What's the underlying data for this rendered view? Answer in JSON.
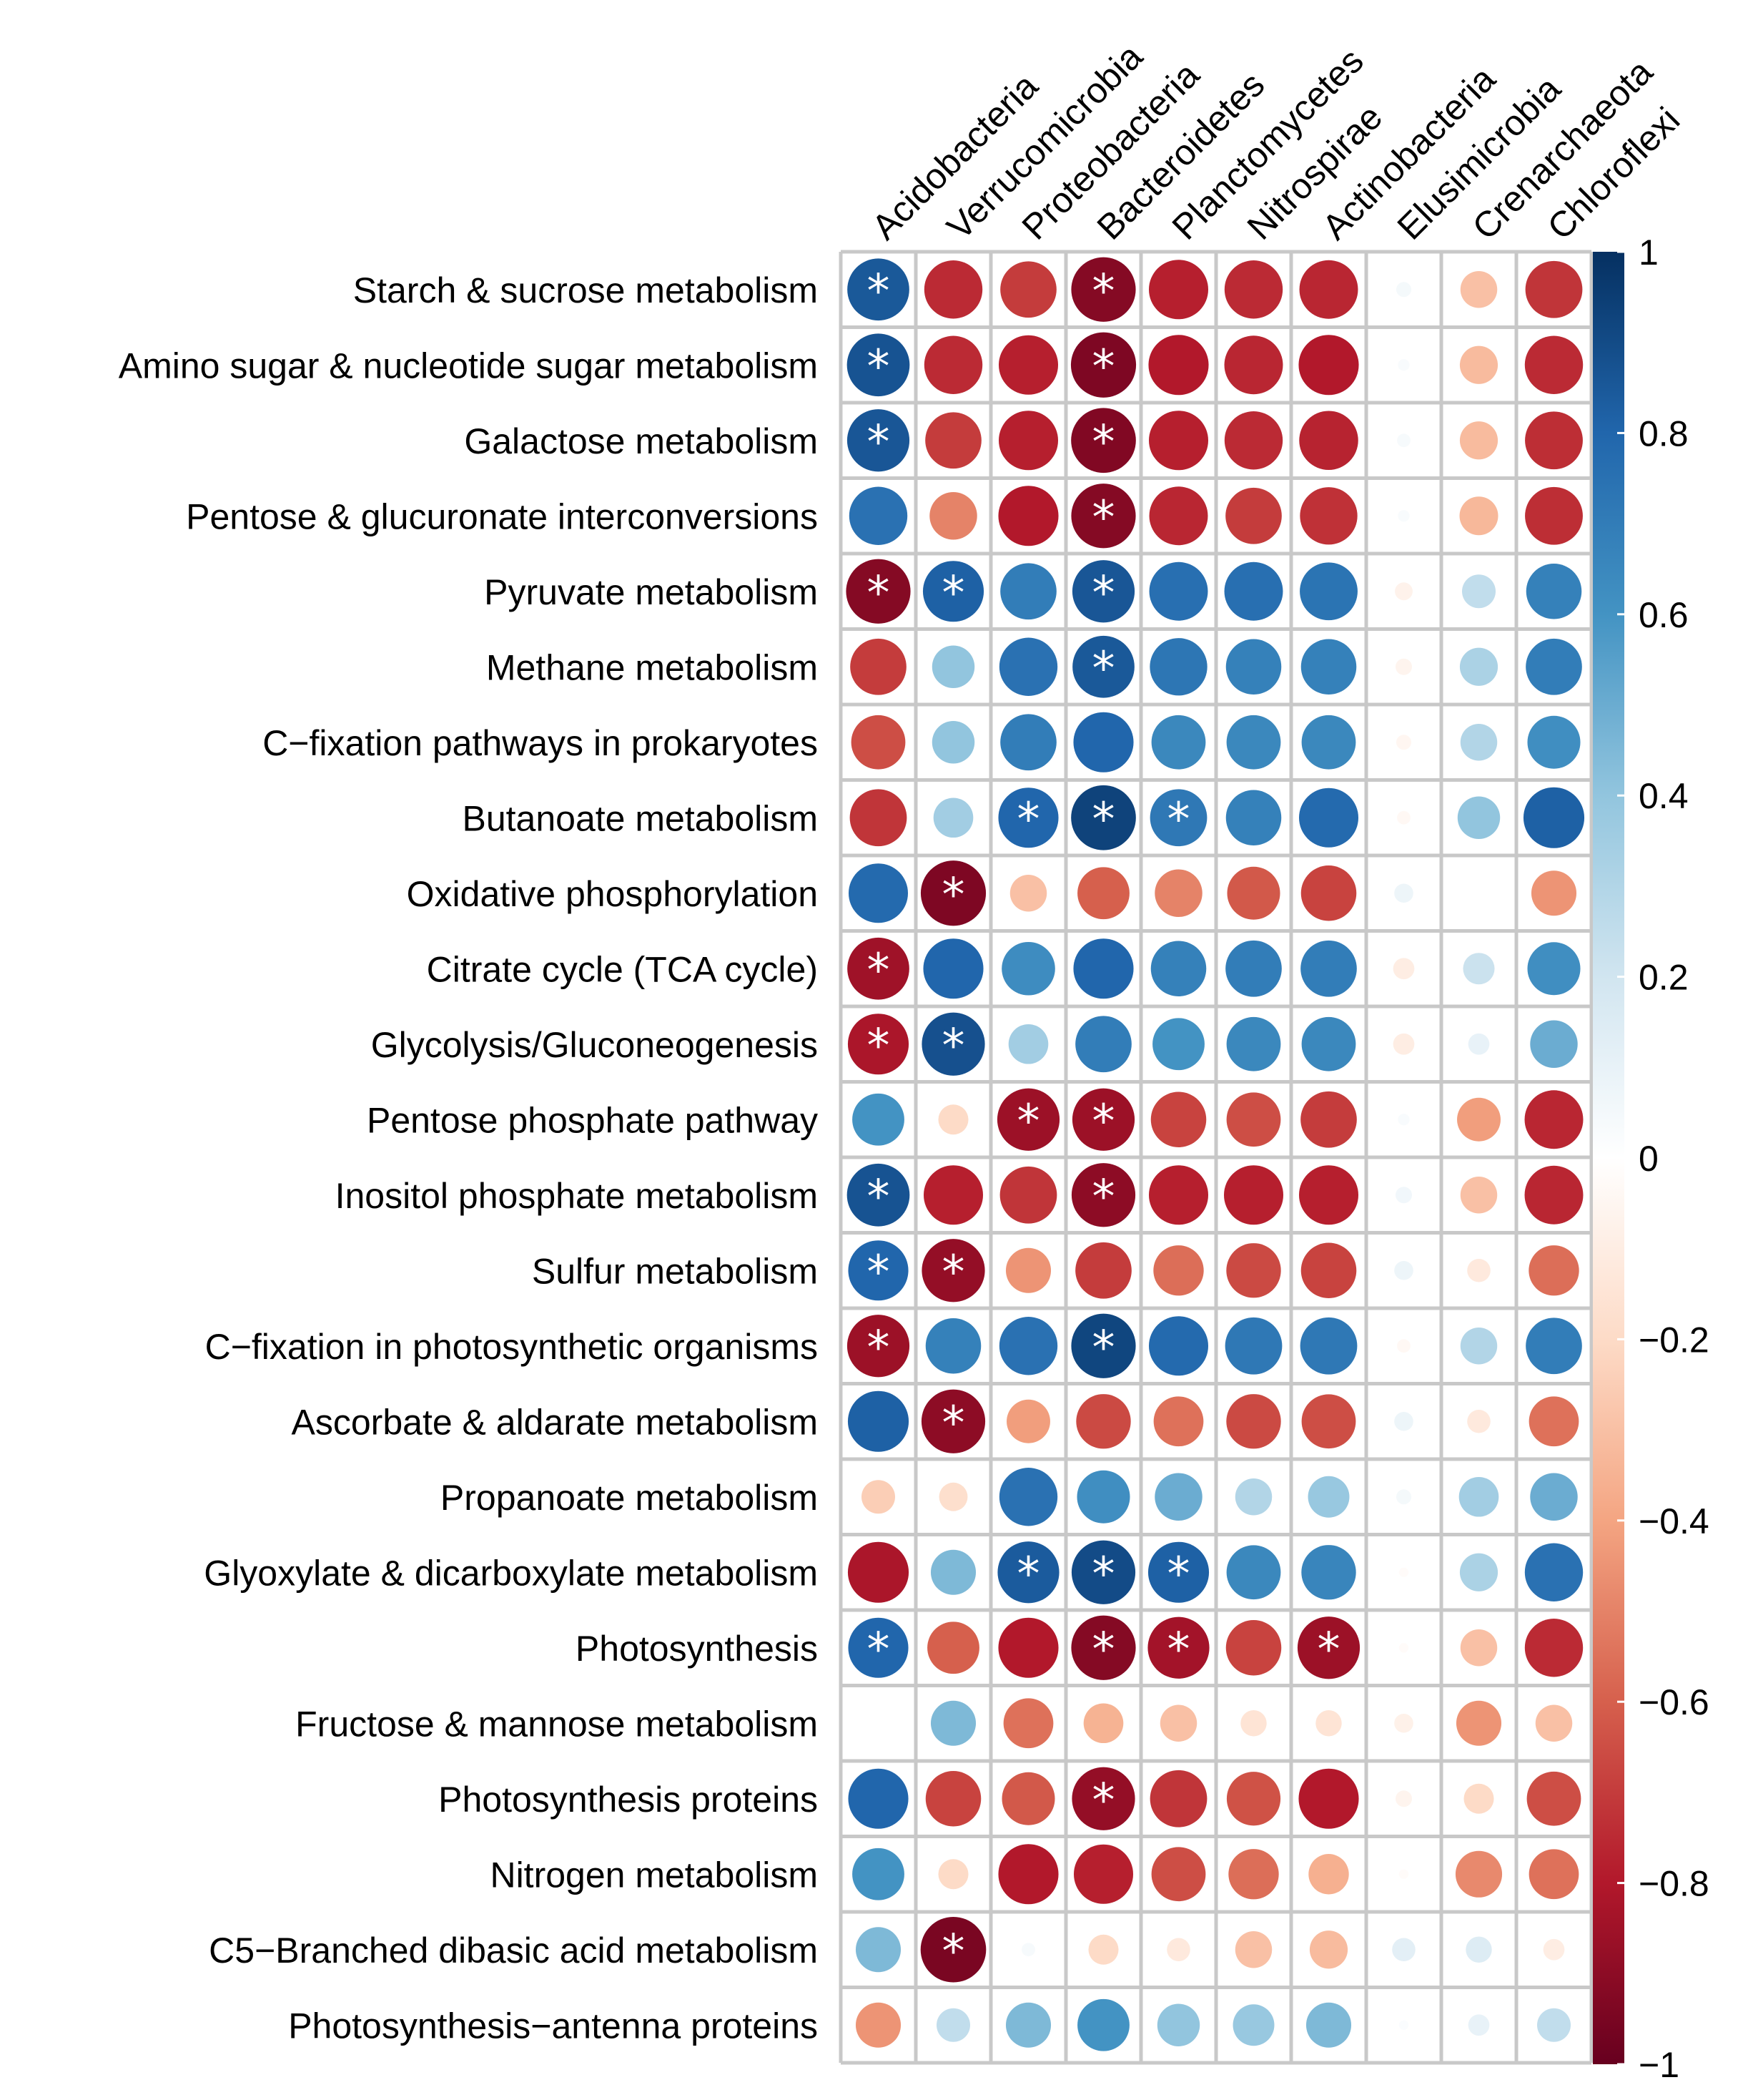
{
  "chart_data": {
    "type": "heatmap",
    "title": "",
    "columns": [
      "Acidobacteria",
      "Verrucomicrobia",
      "Proteobacteria",
      "Bacteroidetes",
      "Planctomycetes",
      "Nitrospirae",
      "Actinobacteria",
      "Elusimicrobia",
      "Crenarchaeota",
      "Chloroflexi"
    ],
    "rows": [
      "Starch & sucrose metabolism",
      "Amino sugar & nucleotide sugar metabolism",
      "Galactose metabolism",
      "Pentose & glucuronate interconversions",
      "Pyruvate metabolism",
      "Methane metabolism",
      "C−fixation pathways in prokaryotes",
      "Butanoate metabolism",
      "Oxidative phosphorylation",
      "Citrate cycle (TCA cycle)",
      "Glycolysis/Gluconeogenesis",
      "Pentose phosphate pathway",
      "Inositol phosphate metabolism",
      "Sulfur metabolism",
      "C−fixation in photosynthetic organisms",
      "Ascorbate & aldarate metabolism",
      "Propanoate metabolism",
      "Glyoxylate & dicarboxylate metabolism",
      "Photosynthesis",
      "Fructose & mannose metabolism",
      "Photosynthesis proteins",
      "Nitrogen metabolism",
      "C5−Branched dibasic acid metabolism",
      "Photosynthesis−antenna proteins"
    ],
    "values": [
      [
        0.85,
        -0.75,
        -0.7,
        -0.92,
        -0.78,
        -0.75,
        -0.76,
        0.05,
        -0.3,
        -0.72
      ],
      [
        0.87,
        -0.75,
        -0.78,
        -0.94,
        -0.8,
        -0.76,
        -0.8,
        0.03,
        -0.32,
        -0.75
      ],
      [
        0.86,
        -0.7,
        -0.78,
        -0.93,
        -0.78,
        -0.75,
        -0.77,
        0.04,
        -0.32,
        -0.74
      ],
      [
        0.75,
        -0.5,
        -0.8,
        -0.92,
        -0.76,
        -0.7,
        -0.73,
        0.03,
        -0.33,
        -0.74
      ],
      [
        -0.92,
        0.82,
        0.7,
        0.86,
        0.76,
        0.76,
        0.74,
        -0.07,
        0.25,
        0.68
      ],
      [
        -0.7,
        0.4,
        0.75,
        0.85,
        0.73,
        0.68,
        0.68,
        -0.06,
        0.32,
        0.7
      ],
      [
        -0.65,
        0.4,
        0.7,
        0.8,
        0.65,
        0.65,
        0.65,
        -0.05,
        0.3,
        0.62
      ],
      [
        -0.72,
        0.35,
        0.8,
        0.93,
        0.72,
        0.68,
        0.78,
        -0.04,
        0.4,
        0.82
      ],
      [
        0.78,
        -0.94,
        -0.3,
        -0.6,
        -0.5,
        -0.62,
        -0.68,
        0.08,
        0.0,
        -0.45
      ],
      [
        -0.85,
        0.8,
        0.63,
        0.8,
        0.68,
        0.7,
        0.7,
        -0.1,
        0.22,
        0.62
      ],
      [
        -0.82,
        0.88,
        0.35,
        0.7,
        0.6,
        0.65,
        0.65,
        -0.1,
        0.1,
        0.5
      ],
      [
        0.6,
        -0.2,
        -0.86,
        -0.86,
        -0.68,
        -0.65,
        -0.7,
        0.03,
        -0.42,
        -0.76
      ],
      [
        0.87,
        -0.78,
        -0.72,
        -0.9,
        -0.78,
        -0.78,
        -0.78,
        0.06,
        -0.3,
        -0.76
      ],
      [
        0.8,
        -0.88,
        -0.45,
        -0.7,
        -0.56,
        -0.66,
        -0.68,
        0.08,
        -0.12,
        -0.56
      ],
      [
        -0.86,
        0.68,
        0.75,
        0.92,
        0.78,
        0.72,
        0.72,
        -0.04,
        0.3,
        0.7
      ],
      [
        0.82,
        -0.9,
        -0.42,
        -0.66,
        -0.55,
        -0.66,
        -0.65,
        0.08,
        -0.12,
        -0.55
      ],
      [
        -0.25,
        -0.18,
        0.75,
        0.62,
        0.5,
        0.3,
        0.38,
        0.05,
        0.35,
        0.5
      ],
      [
        -0.82,
        0.45,
        0.84,
        0.9,
        0.82,
        0.65,
        0.66,
        -0.02,
        0.32,
        0.75
      ],
      [
        0.8,
        -0.6,
        -0.8,
        -0.92,
        -0.84,
        -0.68,
        -0.86,
        -0.02,
        -0.3,
        -0.75
      ],
      [
        0.0,
        0.45,
        -0.55,
        -0.35,
        -0.3,
        -0.15,
        -0.15,
        -0.08,
        -0.45,
        -0.3
      ],
      [
        0.8,
        -0.68,
        -0.62,
        -0.88,
        -0.72,
        -0.64,
        -0.8,
        -0.06,
        -0.2,
        -0.65
      ],
      [
        0.6,
        -0.2,
        -0.8,
        -0.78,
        -0.65,
        -0.56,
        -0.36,
        -0.02,
        -0.48,
        -0.55
      ],
      [
        0.45,
        -0.95,
        0.04,
        -0.2,
        -0.12,
        -0.3,
        -0.32,
        0.12,
        0.15,
        -0.1
      ],
      [
        -0.45,
        0.25,
        0.45,
        0.6,
        0.4,
        0.38,
        0.45,
        0.02,
        0.1,
        0.25
      ]
    ],
    "significant": [
      [
        0,
        0
      ],
      [
        0,
        3
      ],
      [
        1,
        0
      ],
      [
        1,
        3
      ],
      [
        2,
        0
      ],
      [
        2,
        3
      ],
      [
        3,
        3
      ],
      [
        4,
        0
      ],
      [
        4,
        1
      ],
      [
        4,
        3
      ],
      [
        5,
        3
      ],
      [
        7,
        2
      ],
      [
        7,
        3
      ],
      [
        7,
        4
      ],
      [
        8,
        1
      ],
      [
        9,
        0
      ],
      [
        10,
        0
      ],
      [
        10,
        1
      ],
      [
        11,
        2
      ],
      [
        11,
        3
      ],
      [
        12,
        0
      ],
      [
        12,
        3
      ],
      [
        13,
        0
      ],
      [
        13,
        1
      ],
      [
        14,
        0
      ],
      [
        14,
        3
      ],
      [
        15,
        1
      ],
      [
        17,
        2
      ],
      [
        17,
        3
      ],
      [
        17,
        4
      ],
      [
        18,
        0
      ],
      [
        18,
        3
      ],
      [
        18,
        4
      ],
      [
        18,
        6
      ],
      [
        20,
        3
      ],
      [
        22,
        1
      ]
    ],
    "significance_mark": "*",
    "legend": {
      "ticks": [
        "1",
        "0.8",
        "0.6",
        "0.4",
        "0.2",
        "0",
        "−0.2",
        "−0.4",
        "−0.6",
        "−0.8",
        "−1"
      ],
      "tick_values": [
        1,
        0.8,
        0.6,
        0.4,
        0.2,
        0,
        -0.2,
        -0.4,
        -0.6,
        -0.8,
        -1
      ],
      "range": [
        -1,
        1
      ],
      "position": "right"
    },
    "colors": {
      "low": "#67001f",
      "high": "#053061",
      "grid": "#c8c8c8",
      "star": "#ffffff"
    }
  }
}
